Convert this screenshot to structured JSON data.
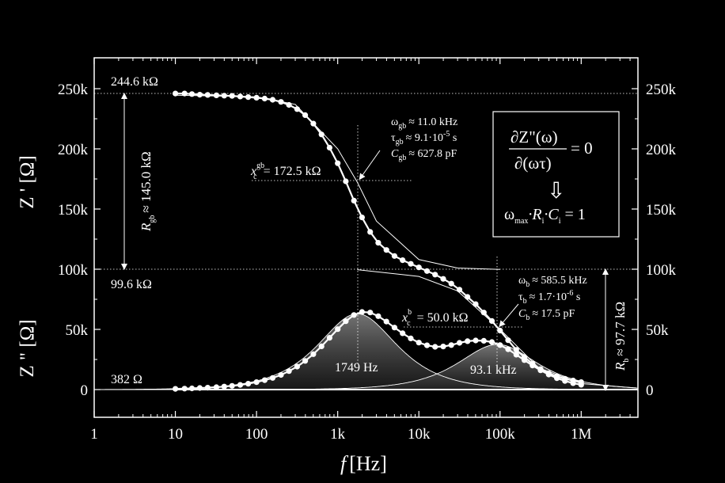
{
  "chart_data": {
    "type": "line",
    "xlabel_italic": "f",
    "xlabel_unit": "[Hz]",
    "ylabel_top": "Z ' [Ω]",
    "ylabel_bottom": "Z \" [Ω]",
    "x_scale": "log",
    "xlim": [
      1,
      5000000
    ],
    "ylim": [
      0,
      270000
    ],
    "x_ticks": [
      {
        "value": 1,
        "label": "1"
      },
      {
        "value": 10,
        "label": "10"
      },
      {
        "value": 100,
        "label": "100"
      },
      {
        "value": 1000,
        "label": "1k"
      },
      {
        "value": 10000,
        "label": "10k"
      },
      {
        "value": 100000,
        "label": "100k"
      },
      {
        "value": 1000000,
        "label": "1M"
      }
    ],
    "y_ticks": [
      {
        "value": 0,
        "label": "0"
      },
      {
        "value": 50000,
        "label": "50k"
      },
      {
        "value": 100000,
        "label": "100k"
      },
      {
        "value": 150000,
        "label": "150k"
      },
      {
        "value": 200000,
        "label": "200k"
      },
      {
        "value": 250000,
        "label": "250k"
      }
    ],
    "grid": false,
    "legend": "none",
    "series": [
      {
        "kind": "Z_real",
        "x": [
          10,
          13,
          16,
          20,
          25,
          32,
          40,
          50,
          63,
          79,
          100,
          126,
          158,
          200,
          251,
          316,
          398,
          501,
          631,
          794,
          1000,
          1259,
          1585,
          1995,
          2512,
          3162,
          3981,
          5012,
          6310,
          7943,
          10000,
          12589,
          15849,
          19953,
          25119,
          31623,
          39811,
          50119,
          63096,
          79433,
          100000,
          125893,
          158489,
          199526,
          251189,
          316228,
          398107,
          501187,
          630957,
          794328,
          1000000
        ],
        "y": [
          246000,
          246000,
          245500,
          245000,
          244800,
          244500,
          244200,
          244000,
          243500,
          243000,
          242500,
          241800,
          240800,
          239000,
          236500,
          233000,
          228000,
          221000,
          212000,
          201000,
          188000,
          173000,
          157000,
          143000,
          131000,
          122000,
          116000,
          111000,
          107500,
          104500,
          101500,
          98500,
          95500,
          92000,
          88000,
          83000,
          77000,
          71000,
          64000,
          57000,
          49000,
          41000,
          33000,
          27000,
          21500,
          17000,
          13500,
          11000,
          9000,
          7500,
          6200
        ]
      },
      {
        "kind": "Z_imag",
        "x": [
          10,
          13,
          16,
          20,
          25,
          32,
          40,
          50,
          63,
          79,
          100,
          126,
          158,
          200,
          251,
          316,
          398,
          501,
          631,
          794,
          1000,
          1259,
          1585,
          1995,
          2512,
          3162,
          3981,
          5012,
          6310,
          7943,
          10000,
          12589,
          15849,
          19953,
          25119,
          31623,
          39811,
          50119,
          63096,
          79433,
          100000,
          125893,
          158489,
          199526,
          251189,
          316228,
          398107,
          501187,
          630957,
          794328,
          1000000
        ],
        "y": [
          600,
          800,
          1000,
          1300,
          1600,
          2000,
          2500,
          3100,
          3900,
          4900,
          6200,
          7800,
          9700,
          12200,
          15300,
          19100,
          23800,
          29400,
          35900,
          43000,
          50200,
          56800,
          62000,
          64500,
          64000,
          61000,
          56500,
          51500,
          46800,
          42500,
          39000,
          36800,
          35500,
          35800,
          37000,
          38800,
          40200,
          40800,
          40500,
          39500,
          37000,
          33500,
          29000,
          24500,
          20000,
          16000,
          12500,
          9500,
          7200,
          5300,
          4000
        ]
      }
    ],
    "fit_curves": [
      {
        "kind": "Z_real_fit_gb",
        "x": [
          10,
          100,
          300,
          1000,
          1749,
          3000,
          10000,
          30000,
          100000
        ],
        "y": [
          244600,
          243200,
          237000,
          200000,
          172100,
          140000,
          108000,
          101000,
          99800
        ]
      },
      {
        "kind": "Z_real_fit_b",
        "x": [
          1749,
          10000,
          30000,
          100000,
          300000,
          1000000,
          5000000
        ],
        "y": [
          99600,
          94000,
          82000,
          50000,
          18000,
          5000,
          1200
        ]
      },
      {
        "kind": "Z_imag_peak_gb",
        "center": 1749,
        "peak": 63000
      },
      {
        "kind": "Z_imag_peak_b",
        "center": 93100,
        "peak": 37500
      }
    ],
    "annotations": {
      "r_top": "244.6 kΩ",
      "r_mid": "99.6 kΩ",
      "r_low": "382 Ω",
      "rgb_label": "R",
      "rgb_sub": "gb",
      "rgb_value": "≈ 145.0 kΩ",
      "rb_label": "R",
      "rb_sub": "b",
      "rb_value": "≈ 97.7 kΩ",
      "xc_gb_sym": "x",
      "xc_gb_sub": "c",
      "xc_gb_sup": "gb",
      "xc_gb_value": "= 172.5 kΩ",
      "xc_b_sym": "x",
      "xc_b_sub": "c",
      "xc_b_sup": "b",
      "xc_b_value": "= 50.0 kΩ",
      "gb_omega_sym": "ω",
      "gb_omega_sub": "gb",
      "gb_omega_value": "≈ 11.0 kHz",
      "gb_tau_sym": "τ",
      "gb_tau_sub": "gb",
      "gb_tau_value": "≈ 9.1·10",
      "gb_tau_exp": "-5",
      "gb_tau_unit": " s",
      "gb_c_sym": "C",
      "gb_c_sub": "gb",
      "gb_c_value": "≈ 627.8 pF",
      "b_omega_sym": "ω",
      "b_omega_sub": "b",
      "b_omega_value": "≈ 585.5 kHz",
      "b_tau_sym": "τ",
      "b_tau_sub": "b",
      "b_tau_value": "≈ 1.7·10",
      "b_tau_exp": "-6",
      "b_tau_unit": " s",
      "b_c_sym": "C",
      "b_c_sub": "b",
      "b_c_value": "≈ 17.5 pF",
      "peak_gb_label": "1749 Hz",
      "peak_b_label": "93.1 kHz",
      "box_numerator": "∂Z\"(ω)",
      "box_denominator": "∂(ωτ)",
      "box_equals": "= 0",
      "box_arrow": "⇩",
      "box_omega": "ω",
      "box_omega_sub": "max",
      "box_product": "·R",
      "box_ri_sub": "i",
      "box_ci": "·C",
      "box_ci_sub": "i",
      "box_result": " = 1"
    }
  }
}
